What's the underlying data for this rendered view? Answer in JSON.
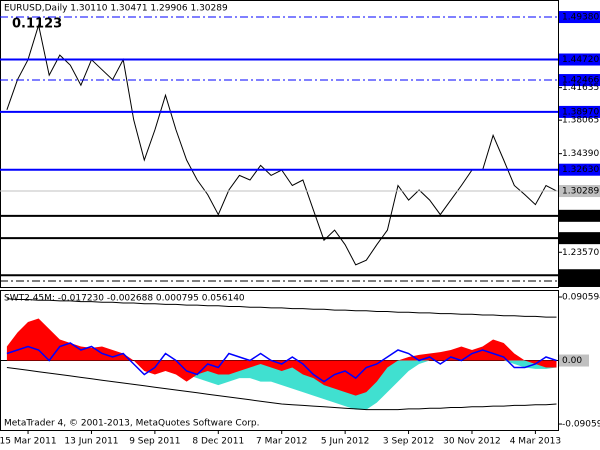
{
  "chart_data": [
    {
      "type": "line",
      "title": "EURUSD,Daily  1.30110 1.30471 1.29906 1.30289",
      "annotation": "0.1123",
      "categories": [
        null,
        null,
        "15 Mar 2011",
        null,
        null,
        null,
        null,
        null,
        "13 Jun 2011",
        null,
        null,
        null,
        null,
        null,
        "9 Sep 2011",
        null,
        null,
        null,
        null,
        null,
        "8 Dec 2011",
        null,
        null,
        null,
        null,
        null,
        "7 Mar 2012",
        null,
        null,
        null,
        null,
        null,
        "5 Jun 2012",
        null,
        null,
        null,
        null,
        null,
        "3 Sep 2012",
        null,
        null,
        null,
        null,
        null,
        "30 Nov 2012",
        null,
        null,
        null,
        null,
        null,
        "4 Mar 2013",
        null,
        null
      ],
      "series": [
        {
          "color": "#000000",
          "values": [
            1.392,
            1.425,
            1.447,
            1.485,
            1.43,
            1.452,
            1.441,
            1.419,
            1.447,
            1.436,
            1.425,
            1.447,
            1.381,
            1.337,
            1.37,
            1.408,
            1.37,
            1.337,
            1.315,
            1.299,
            1.277,
            1.304,
            1.32,
            1.315,
            1.331,
            1.32,
            1.326,
            1.309,
            1.315,
            1.282,
            1.249,
            1.26,
            1.244,
            1.222,
            1.227,
            1.244,
            1.26,
            1.309,
            1.293,
            1.304,
            1.293,
            1.277,
            1.293,
            1.309,
            1.326,
            1.326,
            1.364,
            1.337,
            1.309,
            1.299,
            1.288,
            1.309,
            1.303
          ]
        }
      ],
      "ylim": [
        1.1976,
        1.5125
      ],
      "yticks": [
        {
          "value": 1.41635,
          "label": "1.41635"
        },
        {
          "value": 1.38065,
          "label": "1.38065"
        },
        {
          "value": 1.3439,
          "label": "1.34390"
        },
        {
          "value": 1.2357,
          "label": "1.23570"
        }
      ],
      "levels": [
        {
          "value": 1.4938,
          "label": "1.49380",
          "color": "#0000ff",
          "style": "dashdot"
        },
        {
          "value": 1.4472,
          "label": "1.44720",
          "color": "#0000ff",
          "style": "solid"
        },
        {
          "value": 1.42466,
          "label": "1.42466",
          "color": "#0000ff",
          "style": "dashdot"
        },
        {
          "value": 1.3897,
          "label": "1.38970",
          "color": "#0000ff",
          "style": "solid"
        },
        {
          "value": 1.3263,
          "label": "1.32630",
          "color": "#0000ff",
          "style": "solid"
        },
        {
          "value": 1.2757,
          "label": "1.27570",
          "color": "#000000",
          "style": "solid"
        },
        {
          "value": 1.2512,
          "label": "1.25120",
          "color": "#000000",
          "style": "solid"
        },
        {
          "value": 1.2105,
          "label": "1.21050",
          "color": "#000000",
          "style": "solid"
        },
        {
          "value": 1.2042,
          "label": "1.20420",
          "color": "#000000",
          "style": "dashdot"
        }
      ],
      "current": {
        "value": 1.30289,
        "label": "1.30289",
        "color": "#c0c0c0"
      }
    },
    {
      "type": "area",
      "title": "SWT2.45M: -0.017230 -0.002688 0.000795 0.056140",
      "footer": "MetaTrader 4, © 2001-2013, MetaQuotes Software Corp.",
      "series": [
        {
          "color": "#40e0d0",
          "style": "area",
          "values": [
            null,
            null,
            null,
            null,
            null,
            null,
            null,
            null,
            null,
            null,
            null,
            null,
            null,
            0,
            -0.005,
            -0.01,
            -0.015,
            -0.02,
            -0.025,
            -0.03,
            -0.035,
            -0.03,
            -0.025,
            -0.025,
            -0.03,
            -0.03,
            -0.035,
            -0.04,
            -0.045,
            -0.05,
            -0.055,
            -0.06,
            -0.065,
            -0.07,
            -0.07,
            -0.06,
            -0.045,
            -0.03,
            -0.015,
            -0.005,
            0,
            null,
            null,
            null,
            null,
            null,
            null,
            0,
            -0.005,
            -0.01,
            -0.012,
            -0.012,
            -0.01
          ]
        },
        {
          "color": "#ff0000",
          "style": "area",
          "values": [
            0.02,
            0.04,
            0.055,
            0.06,
            0.045,
            0.03,
            0.025,
            0.02,
            0.018,
            0.02,
            0.015,
            0.01,
            0,
            -0.015,
            -0.02,
            -0.015,
            -0.02,
            -0.03,
            -0.02,
            -0.015,
            -0.02,
            -0.02,
            -0.015,
            -0.01,
            -0.005,
            -0.01,
            -0.015,
            -0.01,
            -0.02,
            -0.025,
            -0.035,
            -0.04,
            -0.045,
            -0.05,
            -0.045,
            -0.03,
            -0.01,
            0,
            0.005,
            0.008,
            0.01,
            0.012,
            0.015,
            0.02,
            0.015,
            0.02,
            0.03,
            0.025,
            0.01,
            0,
            -0.005,
            -0.01,
            -0.01
          ]
        },
        {
          "color": "#0000ff",
          "style": "line",
          "values": [
            0.01,
            0.015,
            0.02,
            0.015,
            0,
            0.02,
            0.025,
            0.015,
            0.02,
            0.01,
            0.005,
            0.01,
            -0.005,
            -0.02,
            -0.01,
            0.01,
            0,
            -0.015,
            -0.02,
            -0.005,
            -0.01,
            0.01,
            0.005,
            0,
            0.01,
            0,
            -0.005,
            0.005,
            -0.005,
            -0.02,
            -0.03,
            -0.02,
            -0.015,
            -0.025,
            -0.01,
            -0.005,
            0.005,
            0.015,
            0.01,
            0,
            0.005,
            -0.005,
            0.005,
            0,
            0.01,
            0.015,
            0.01,
            0.005,
            -0.01,
            -0.01,
            -0.005,
            0.005,
            0
          ]
        },
        {
          "color": "#000000",
          "style": "line",
          "values": [
            0.088,
            0.087,
            0.087,
            0.086,
            0.086,
            0.085,
            0.085,
            0.084,
            0.084,
            0.083,
            0.083,
            0.082,
            0.082,
            0.081,
            0.081,
            0.08,
            0.08,
            0.079,
            0.079,
            0.078,
            0.078,
            0.077,
            0.077,
            0.076,
            0.076,
            0.075,
            0.075,
            0.074,
            0.074,
            0.073,
            0.073,
            0.072,
            0.072,
            0.071,
            0.071,
            0.07,
            0.07,
            0.069,
            0.069,
            0.068,
            0.068,
            0.067,
            0.067,
            0.066,
            0.066,
            0.065,
            0.065,
            0.064,
            0.064,
            0.063,
            0.063,
            0.062,
            0.062
          ]
        },
        {
          "color": "#000000",
          "style": "line",
          "values": [
            -0.01,
            -0.012,
            -0.014,
            -0.016,
            -0.018,
            -0.02,
            -0.022,
            -0.024,
            -0.026,
            -0.028,
            -0.03,
            -0.032,
            -0.034,
            -0.036,
            -0.038,
            -0.04,
            -0.042,
            -0.044,
            -0.046,
            -0.048,
            -0.05,
            -0.052,
            -0.054,
            -0.056,
            -0.058,
            -0.06,
            -0.062,
            -0.063,
            -0.064,
            -0.065,
            -0.066,
            -0.067,
            -0.068,
            -0.069,
            -0.07,
            -0.07,
            -0.07,
            -0.07,
            -0.069,
            -0.069,
            -0.068,
            -0.068,
            -0.067,
            -0.067,
            -0.066,
            -0.066,
            -0.065,
            -0.065,
            -0.064,
            -0.064,
            -0.063,
            -0.063,
            -0.062
          ]
        }
      ],
      "ylim": [
        -0.0991,
        0.1006
      ],
      "yticks": [
        {
          "value": 0.090594,
          "label": "0.090594"
        },
        {
          "value": 0,
          "label": "0.00"
        },
        {
          "value": -0.090594,
          "label": "-0.090594"
        }
      ]
    }
  ]
}
